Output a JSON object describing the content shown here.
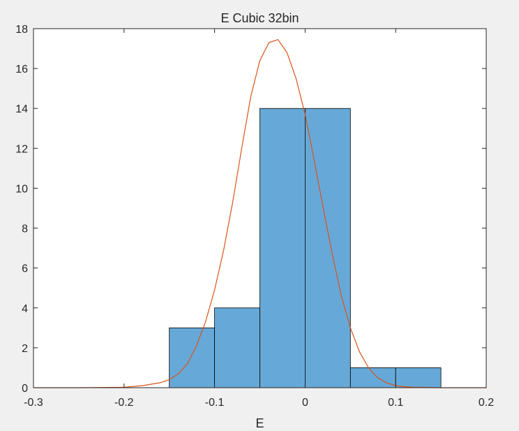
{
  "chart_data": {
    "type": "bar",
    "title": "E Cubic 32bin",
    "xlabel": "E",
    "ylabel": "",
    "xlim": [
      -0.3,
      0.2
    ],
    "ylim": [
      0,
      18
    ],
    "xticks": [
      "-0.3",
      "-0.2",
      "-0.1",
      "0",
      "0.1",
      "0.2"
    ],
    "yticks": [
      "0",
      "2",
      "4",
      "6",
      "8",
      "10",
      "12",
      "14",
      "16",
      "18"
    ],
    "grid": false,
    "legend": "none",
    "colors": {
      "bar_fill": "#66a9d8",
      "bar_edge": "#000000",
      "curve": "#d95319",
      "axes_bg": "#ffffff",
      "figure_bg": "#f0f0f0"
    },
    "histogram": {
      "bin_edges": [
        -0.15,
        -0.1,
        -0.05,
        0,
        0.05,
        0.1,
        0.15
      ],
      "counts": [
        3,
        4,
        14,
        14,
        1,
        1
      ]
    },
    "fit_curve": {
      "type": "line",
      "x": [
        -0.3,
        -0.25,
        -0.2,
        -0.18,
        -0.16,
        -0.15,
        -0.14,
        -0.13,
        -0.12,
        -0.11,
        -0.1,
        -0.09,
        -0.08,
        -0.07,
        -0.06,
        -0.05,
        -0.04,
        -0.03,
        -0.02,
        -0.01,
        0,
        0.01,
        0.02,
        0.03,
        0.04,
        0.05,
        0.06,
        0.07,
        0.08,
        0.09,
        0.1,
        0.11,
        0.12,
        0.15,
        0.2
      ],
      "y": [
        0,
        0,
        0.02,
        0.1,
        0.25,
        0.4,
        0.7,
        1.2,
        2.1,
        3.3,
        4.9,
        6.9,
        9.3,
        12.0,
        14.6,
        16.4,
        17.3,
        17.45,
        16.8,
        15.5,
        13.7,
        11.4,
        9.0,
        6.7,
        4.6,
        3.0,
        1.8,
        1.0,
        0.5,
        0.25,
        0.1,
        0.05,
        0.02,
        0,
        0
      ]
    }
  }
}
